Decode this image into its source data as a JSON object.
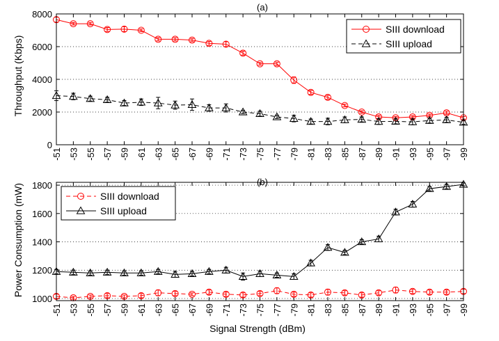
{
  "figure": {
    "xlabel": "Signal Strength (dBm)"
  },
  "chart_data": [
    {
      "type": "line",
      "panel_label": "(a)",
      "ylabel": "Throughput (Kbps)",
      "x": [
        -51,
        -53,
        -55,
        -57,
        -59,
        -61,
        -63,
        -65,
        -67,
        -69,
        -71,
        -73,
        -75,
        -77,
        -79,
        -81,
        -83,
        -85,
        -87,
        -89,
        -91,
        -93,
        -95,
        -97,
        -99
      ],
      "x_tick_labels": [
        "-51",
        "-53",
        "-55",
        "-57",
        "-59",
        "-61",
        "-63",
        "-65",
        "-67",
        "-69",
        "-71",
        "-73",
        "-75",
        "-77",
        "-79",
        "-81",
        "-83",
        "-85",
        "-87",
        "-89",
        "-91",
        "-93",
        "-95",
        "-97",
        "-99"
      ],
      "ylim": [
        0,
        8000
      ],
      "y_ticks": [
        0,
        2000,
        4000,
        6000,
        8000
      ],
      "grid": "horizontal dotted",
      "legend_position": "top-right",
      "series": [
        {
          "name": "SIII download",
          "color": "#ff0000",
          "marker": "circle",
          "line_style": "solid",
          "values": [
            7650,
            7400,
            7400,
            7050,
            7070,
            7000,
            6450,
            6450,
            6400,
            6200,
            6150,
            5600,
            4950,
            4950,
            3950,
            3200,
            2900,
            2400,
            2000,
            1700,
            1650,
            1700,
            1800,
            1950,
            1650
          ],
          "errors": [
            150,
            80,
            80,
            120,
            150,
            80,
            100,
            100,
            100,
            120,
            150,
            120,
            80,
            100,
            200,
            120,
            120,
            80,
            80,
            100,
            80,
            80,
            80,
            100,
            80
          ]
        },
        {
          "name": "SIII upload",
          "color": "#000000",
          "marker": "triangle",
          "line_style": "dashed",
          "values": [
            3000,
            2950,
            2820,
            2750,
            2550,
            2600,
            2550,
            2420,
            2450,
            2250,
            2250,
            2000,
            1900,
            1700,
            1600,
            1420,
            1420,
            1520,
            1550,
            1420,
            1430,
            1400,
            1480,
            1520,
            1370
          ],
          "errors": [
            300,
            200,
            150,
            150,
            150,
            200,
            350,
            250,
            350,
            200,
            250,
            100,
            150,
            100,
            200,
            150,
            200,
            180,
            150,
            180,
            150,
            180,
            150,
            150,
            120
          ]
        }
      ]
    },
    {
      "type": "line",
      "panel_label": "(b)",
      "ylabel": "Power Consumption (mW)",
      "x": [
        -51,
        -53,
        -55,
        -57,
        -59,
        -61,
        -63,
        -65,
        -67,
        -69,
        -71,
        -73,
        -75,
        -77,
        -79,
        -81,
        -83,
        -85,
        -87,
        -89,
        -91,
        -93,
        -95,
        -97,
        -99
      ],
      "x_tick_labels": [
        "-51",
        "-53",
        "-55",
        "-57",
        "-59",
        "-61",
        "-63",
        "-65",
        "-67",
        "-69",
        "-71",
        "-73",
        "-75",
        "-77",
        "-79",
        "-81",
        "-83",
        "-85",
        "-87",
        "-89",
        "-91",
        "-93",
        "-95",
        "-97",
        "-99"
      ],
      "ylim": [
        985,
        1820
      ],
      "y_ticks": [
        1000,
        1200,
        1400,
        1600,
        1800
      ],
      "grid": "horizontal dotted",
      "legend_position": "top-left",
      "series": [
        {
          "name": "SIII download",
          "color": "#ff0000",
          "marker": "circle",
          "line_style": "dashed",
          "values": [
            1015,
            1005,
            1015,
            1020,
            1015,
            1020,
            1040,
            1035,
            1030,
            1045,
            1030,
            1025,
            1035,
            1055,
            1030,
            1025,
            1045,
            1040,
            1025,
            1040,
            1060,
            1050,
            1045,
            1045,
            1050
          ],
          "errors": [
            15,
            10,
            10,
            15,
            10,
            15,
            20,
            15,
            10,
            15,
            15,
            15,
            15,
            20,
            15,
            15,
            20,
            15,
            15,
            15,
            20,
            15,
            15,
            15,
            15
          ]
        },
        {
          "name": "SIII upload",
          "color": "#000000",
          "marker": "triangle",
          "line_style": "solid",
          "values": [
            1190,
            1185,
            1180,
            1185,
            1180,
            1180,
            1190,
            1170,
            1175,
            1190,
            1200,
            1155,
            1175,
            1165,
            1155,
            1250,
            1360,
            1325,
            1400,
            1420,
            1610,
            1665,
            1775,
            1790,
            1805
          ],
          "errors": [
            15,
            15,
            15,
            15,
            15,
            15,
            15,
            20,
            15,
            15,
            20,
            25,
            20,
            15,
            20,
            20,
            20,
            15,
            15,
            20,
            20,
            20,
            15,
            15,
            10
          ]
        }
      ]
    }
  ]
}
